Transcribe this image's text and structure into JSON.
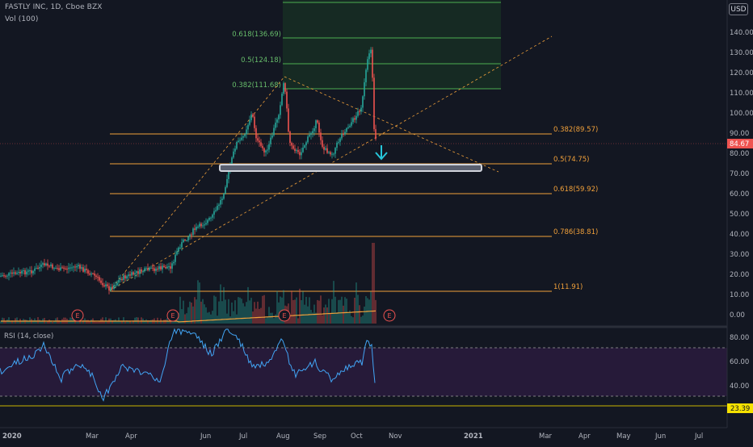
{
  "header": {
    "symbol_line": "FASTLY INC, 1D, Cboe BZX",
    "volume_label": "Vol (100)",
    "currency_badge": "USD"
  },
  "rsi_panel": {
    "label": "RSI (14, close)",
    "axis_ticks": [
      "80.00",
      "60.00",
      "40.00"
    ],
    "current_value": "23.39",
    "level_colors": {
      "band_fill": "#2a1b3d",
      "line": "#42a5f5"
    }
  },
  "price_axis": {
    "ticks": [
      "140.00",
      "130.00",
      "120.00",
      "110.00",
      "100.00",
      "90.00",
      "80.00",
      "70.00",
      "60.00",
      "50.00",
      "40.00",
      "30.00",
      "20.00",
      "10.00",
      "0.00"
    ],
    "current_price": "84.67"
  },
  "time_axis": {
    "ticks": [
      "2020",
      "Mar",
      "Apr",
      "Jun",
      "Jul",
      "Aug",
      "Sep",
      "Oct",
      "Nov",
      "2021",
      "Mar",
      "Apr",
      "May",
      "Jun",
      "Jul"
    ]
  },
  "fib_upper": {
    "levels": [
      {
        "label": "0.618(136.69)"
      },
      {
        "label": "0.5(124.18)"
      },
      {
        "label": "0.382(111.68)"
      }
    ]
  },
  "fib_lower": {
    "levels": [
      {
        "label": "0.382(89.57)"
      },
      {
        "label": "0.5(74.75)"
      },
      {
        "label": "0.618(59.92)"
      },
      {
        "label": "0.786(38.81)"
      },
      {
        "label": "1(11.91)"
      }
    ]
  },
  "earnings_markers": [
    "E",
    "E",
    "E",
    "E"
  ],
  "colors": {
    "background": "#131722",
    "up": "#26a69a",
    "down": "#ef5350",
    "fib_orange": "#f0a03a",
    "fib_green": "#4caf50",
    "current_price_tag": "#ef5350",
    "rsi_tag": "#f5e100"
  }
}
